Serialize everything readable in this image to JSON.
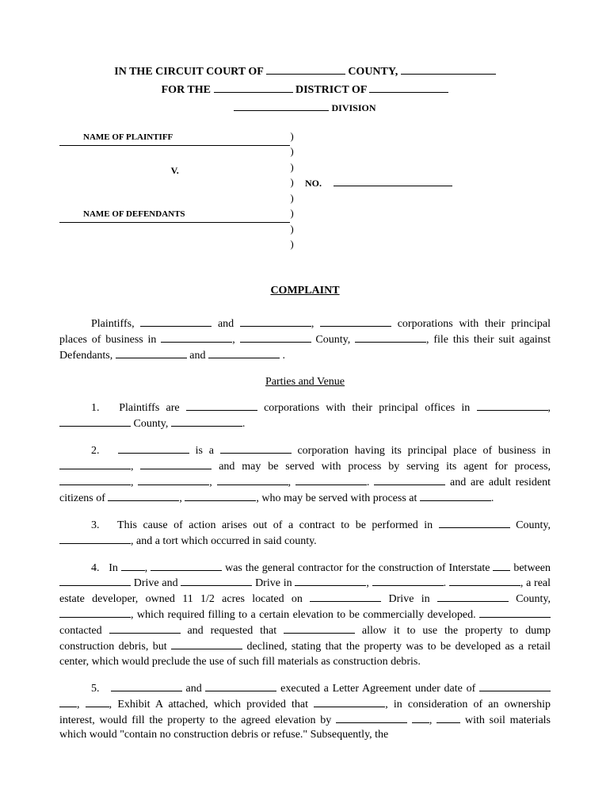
{
  "header": {
    "line1_prefix": "IN THE CIRCUIT COURT OF ",
    "line1_county": " COUNTY, ",
    "line2_prefix": "FOR THE ",
    "line2_middle": " DISTRICT OF ",
    "line3_suffix": " DIVISION"
  },
  "caption": {
    "plaintiff_label": "NAME OF PLAINTIFF",
    "vs": "V.",
    "defendant_label": "NAME OF DEFENDANTS",
    "no_label": "NO."
  },
  "title": "COMPLAINT",
  "intro": {
    "p1": "Plaintiffs, ",
    "p2": " and ",
    "p3": ", ",
    "p4": " corporations with their principal places of business in ",
    "p5": ", ",
    "p6": " County, ",
    "p7": ", file this their suit against Defendants, ",
    "p8": " and ",
    "p9": " ."
  },
  "section1_head": "Parties and Venue",
  "para1": {
    "t1": "1.   Plaintiffs are ",
    "t2": " corporations with their principal offices in ",
    "t3": ", ",
    "t4": " County, ",
    "t5": "."
  },
  "para2": {
    "t1": "2.   ",
    "t2": " is a ",
    "t3": " corporation having its principal place of business in ",
    "t4": ", ",
    "t5": " and may be served with process by serving its agent for process, ",
    "t6": ", ",
    "t7": ", ",
    "t8": ", ",
    "t9": ".  ",
    "t10": " and are adult resident citizens of ",
    "t11": ", ",
    "t12": ", who may be served with process at ",
    "t13": "."
  },
  "para3": {
    "t1": "3.   This cause of action arises out of a contract to be performed in ",
    "t2": " County, ",
    "t3": ", and a tort which occurred in said county."
  },
  "para4": {
    "t1": "4.   In ",
    "t2": ", ",
    "t3": " was the general contractor for the construction of Interstate ",
    "t4": " between ",
    "t5": " Drive and ",
    "t6": " Drive in ",
    "t7": ", ",
    "t8": ".  ",
    "t9": ", a real estate developer, owned 11 1/2 acres located on ",
    "t10": " Drive in ",
    "t11": " County, ",
    "t12": ", which required filling to a certain elevation to be commercially developed. ",
    "t13": " contacted ",
    "t14": " and requested that ",
    "t15": " allow it to use the property to dump construction debris, but ",
    "t16": " declined, stating that the property was to be developed as a retail center, which would preclude the use of such fill materials as construction debris."
  },
  "para5": {
    "t1": "5.   ",
    "t2": " and ",
    "t3": " executed a Letter Agreement under date of ",
    "t4": " ",
    "t5": ", ",
    "t6": ", Exhibit A attached, which provided that ",
    "t7": ", in consideration of an ownership interest, would fill the property to the agreed elevation by ",
    "t8": " ",
    "t9": ", ",
    "t10": " with soil materials which would \"contain no construction debris or refuse.\"  Subsequently, the"
  }
}
